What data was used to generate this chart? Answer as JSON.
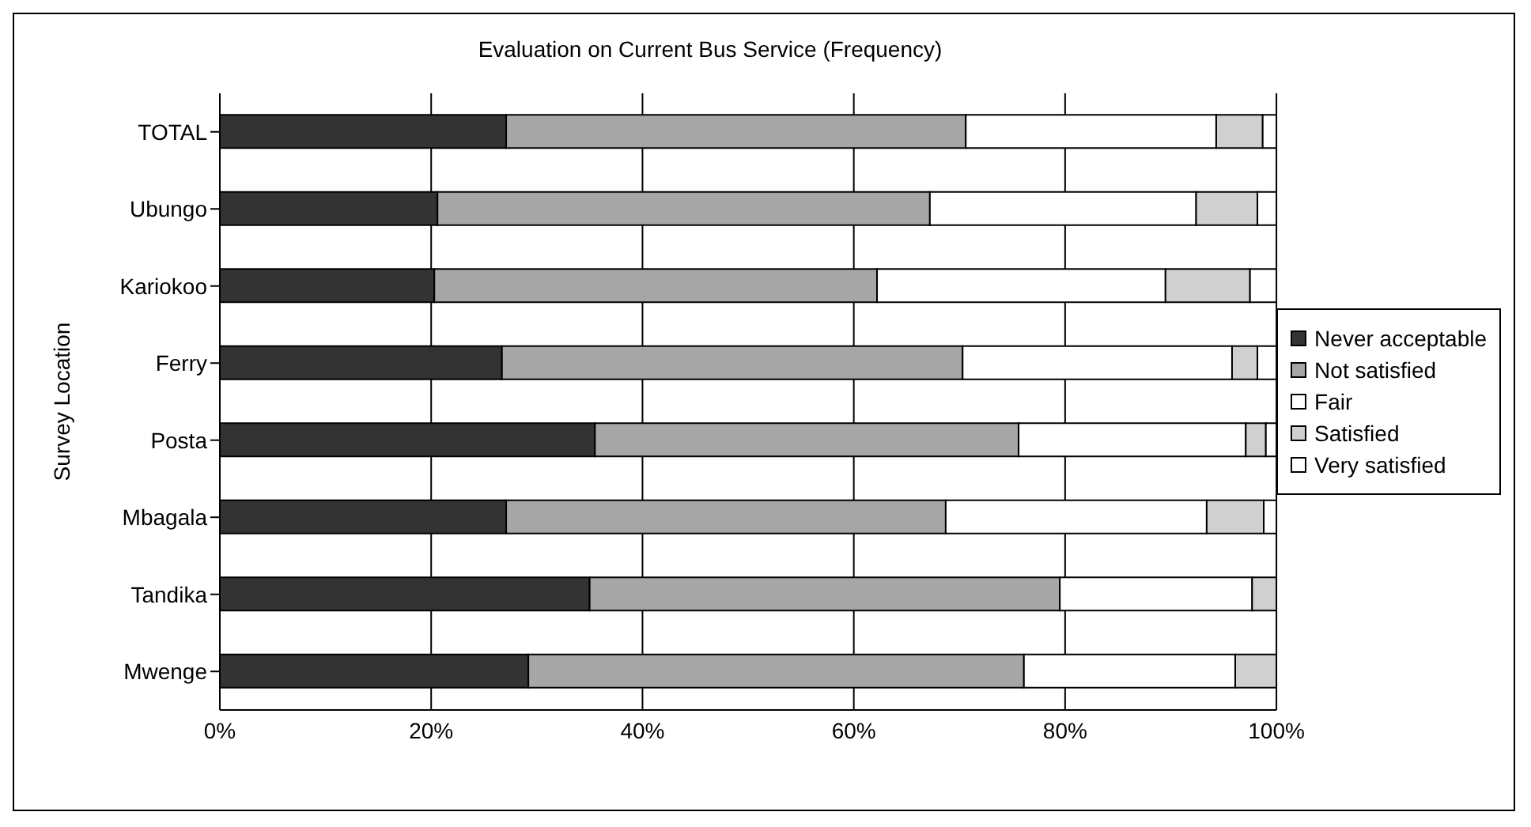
{
  "chart_data": {
    "type": "bar",
    "orientation": "horizontal",
    "stacked": true,
    "title": "Evaluation on Current Bus Service (Frequency)",
    "ylabel": "Survey Location",
    "categories": [
      "TOTAL",
      "Ubungo",
      "Kariokoo",
      "Ferry",
      "Posta",
      "Mbagala",
      "Tandika",
      "Mwenge"
    ],
    "series": [
      {
        "name": "Never acceptable",
        "color": "#333333",
        "values": [
          27.1,
          20.6,
          20.3,
          26.7,
          35.5,
          27.1,
          35.0,
          29.2
        ]
      },
      {
        "name": "Not satisfied",
        "color": "#a6a6a6",
        "values": [
          43.5,
          46.6,
          41.9,
          43.6,
          40.1,
          41.6,
          44.5,
          46.9
        ]
      },
      {
        "name": "Fair",
        "color": "#ffffff",
        "values": [
          23.7,
          25.2,
          27.3,
          25.5,
          21.5,
          24.7,
          18.2,
          20.0
        ]
      },
      {
        "name": "Satisfied",
        "color": "#d0d0d0",
        "values": [
          4.4,
          5.8,
          8.0,
          2.4,
          1.9,
          5.4,
          2.3,
          3.9
        ]
      },
      {
        "name": "Very satisfied",
        "color": "#ffffff",
        "values": [
          1.3,
          1.8,
          2.5,
          1.8,
          1.0,
          1.2,
          0,
          0
        ]
      }
    ],
    "xlim": [
      0,
      100
    ],
    "xticks": [
      {
        "value": 0,
        "label": "0%"
      },
      {
        "value": 20,
        "label": "20%"
      },
      {
        "value": 40,
        "label": "40%"
      },
      {
        "value": 60,
        "label": "60%"
      },
      {
        "value": 80,
        "label": "80%"
      },
      {
        "value": 100,
        "label": "100%"
      }
    ],
    "grid": "x",
    "legend": "right"
  }
}
